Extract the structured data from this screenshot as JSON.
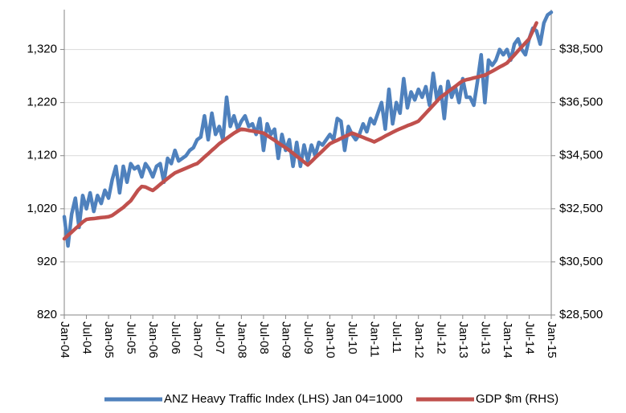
{
  "chart_data": {
    "type": "line",
    "categories": [
      "Jan-04",
      null,
      null,
      null,
      null,
      null,
      "Jul-04",
      null,
      null,
      null,
      null,
      null,
      "Jan-05",
      null,
      null,
      null,
      null,
      null,
      "Jul-05",
      null,
      null,
      null,
      null,
      null,
      "Jan-06",
      null,
      null,
      null,
      null,
      null,
      "Jul-06",
      null,
      null,
      null,
      null,
      null,
      "Jan-07",
      null,
      null,
      null,
      null,
      null,
      "Jul-07",
      null,
      null,
      null,
      null,
      null,
      "Jan-08",
      null,
      null,
      null,
      null,
      null,
      "Jul-08",
      null,
      null,
      null,
      null,
      null,
      "Jan-09",
      null,
      null,
      null,
      null,
      null,
      "Jul-09",
      null,
      null,
      null,
      null,
      null,
      "Jan-10",
      null,
      null,
      null,
      null,
      null,
      "Jul-10",
      null,
      null,
      null,
      null,
      null,
      "Jan-11",
      null,
      null,
      null,
      null,
      null,
      "Jul-11",
      null,
      null,
      null,
      null,
      null,
      "Jan-12",
      null,
      null,
      null,
      null,
      null,
      "Jul-12",
      null,
      null,
      null,
      null,
      null,
      "Jan-13",
      null,
      null,
      null,
      null,
      null,
      "Jul-13",
      null,
      null,
      null,
      null,
      null,
      "Jan-14",
      null,
      null,
      null,
      null,
      null,
      "Jul-14",
      null,
      null,
      null,
      null,
      null,
      "Jan-15"
    ],
    "series": [
      {
        "name": "ANZ Heavy Traffic Index (LHS) Jan 04=1000",
        "color": "#4f81bd",
        "axis": "y",
        "values": [
          1005,
          950,
          1010,
          1040,
          985,
          1045,
          1020,
          1050,
          1015,
          1045,
          1030,
          1055,
          1040,
          1075,
          1100,
          1050,
          1100,
          1070,
          1105,
          1095,
          1100,
          1080,
          1105,
          1095,
          1080,
          1100,
          1105,
          1070,
          1115,
          1105,
          1130,
          1110,
          1115,
          1120,
          1130,
          1135,
          1150,
          1155,
          1195,
          1150,
          1200,
          1160,
          1175,
          1150,
          1230,
          1175,
          1195,
          1170,
          1185,
          1195,
          1175,
          1180,
          1160,
          1190,
          1130,
          1180,
          1160,
          1170,
          1115,
          1160,
          1130,
          1150,
          1100,
          1145,
          1100,
          1140,
          1110,
          1140,
          1120,
          1145,
          1140,
          1150,
          1160,
          1150,
          1190,
          1185,
          1130,
          1175,
          1160,
          1150,
          1160,
          1180,
          1165,
          1190,
          1180,
          1200,
          1220,
          1170,
          1245,
          1180,
          1220,
          1200,
          1265,
          1210,
          1240,
          1225,
          1245,
          1230,
          1250,
          1215,
          1275,
          1225,
          1250,
          1190,
          1260,
          1230,
          1250,
          1220,
          1265,
          1230,
          1230,
          1215,
          1260,
          1310,
          1220,
          1300,
          1290,
          1300,
          1320,
          1310,
          1320,
          1300,
          1330,
          1340,
          1320,
          1310,
          1340,
          1360,
          1355,
          1330,
          1370,
          1385,
          1390
        ]
      },
      {
        "name": "GDP $m (RHS)",
        "color": "#c0504d",
        "axis": "y2",
        "values": [
          31370,
          31500,
          31620,
          31750,
          31870,
          32000,
          32100,
          32120,
          32130,
          32150,
          32170,
          32180,
          32200,
          32250,
          32350,
          32450,
          32550,
          32680,
          32800,
          33000,
          33200,
          33340,
          33320,
          33250,
          33190,
          33300,
          33420,
          33530,
          33640,
          33750,
          33850,
          33910,
          33970,
          34030,
          34090,
          34150,
          34200,
          34320,
          34450,
          34570,
          34700,
          34820,
          34950,
          35050,
          35150,
          35250,
          35350,
          35430,
          35500,
          35480,
          35450,
          35430,
          35400,
          35380,
          35350,
          35260,
          35170,
          35080,
          34980,
          34890,
          34800,
          34700,
          34590,
          34480,
          34370,
          34260,
          34150,
          34280,
          34420,
          34550,
          34680,
          34820,
          34950,
          35020,
          35080,
          35150,
          35220,
          35280,
          35350,
          35300,
          35240,
          35190,
          35130,
          35080,
          35020,
          35090,
          35160,
          35240,
          35310,
          35380,
          35450,
          35510,
          35570,
          35630,
          35680,
          35740,
          35800,
          35950,
          36100,
          36250,
          36400,
          36550,
          36700,
          36800,
          36910,
          37010,
          37110,
          37220,
          37320,
          37360,
          37390,
          37430,
          37460,
          37500,
          37530,
          37610,
          37680,
          37760,
          37840,
          37910,
          37990,
          38140,
          38290,
          38450,
          38600,
          38750,
          38900,
          39200,
          39500,
          null,
          null,
          null,
          null
        ]
      }
    ],
    "ylim": [
      820,
      1395
    ],
    "yticks": [
      820,
      920,
      {
        "value": 1020,
        "label": "1,020"
      },
      {
        "value": 1120,
        "label": "1,120"
      },
      {
        "value": 1220,
        "label": "1,220"
      },
      {
        "value": 1320,
        "label": "1,320"
      }
    ],
    "y2lim": [
      28500,
      40000
    ],
    "y2ticks": [
      {
        "value": 28500,
        "label": "$28,500"
      },
      {
        "value": 30500,
        "label": "$30,500"
      },
      {
        "value": 32500,
        "label": "$32,500"
      },
      {
        "value": 34500,
        "label": "$34,500"
      },
      {
        "value": 36500,
        "label": "$36,500"
      },
      {
        "value": 38500,
        "label": "$38,500"
      }
    ],
    "grid": true,
    "legend": "bottom"
  }
}
